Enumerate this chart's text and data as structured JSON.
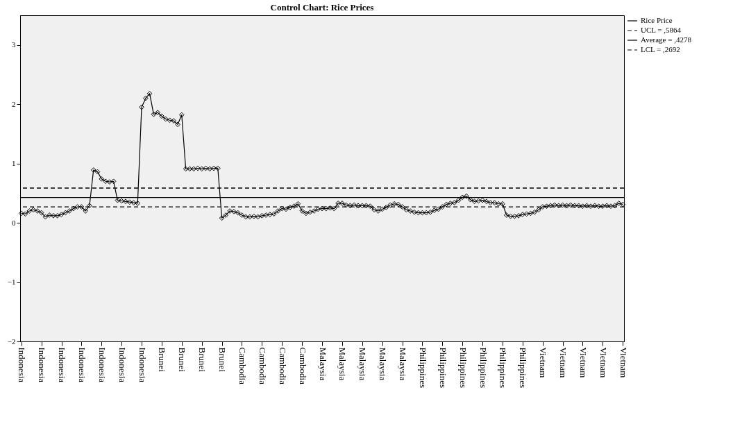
{
  "chart_data": {
    "type": "line",
    "title": "Control Chart: Rice Prices",
    "categories": [
      "Indonesia",
      null,
      null,
      null,
      null,
      "Indonesia",
      null,
      null,
      null,
      null,
      "Indonesia",
      null,
      null,
      null,
      null,
      "Indonesia",
      null,
      null,
      null,
      null,
      "Indonesia",
      null,
      null,
      null,
      null,
      "Indonesia",
      null,
      null,
      null,
      null,
      "Indonesia",
      null,
      null,
      null,
      null,
      "Brunei",
      null,
      null,
      null,
      null,
      "Brunei",
      null,
      null,
      null,
      null,
      "Brunei",
      null,
      null,
      null,
      null,
      "Brunei",
      null,
      null,
      null,
      null,
      "Cambodia",
      null,
      null,
      null,
      null,
      "Cambodia",
      null,
      null,
      null,
      null,
      "Cambodia",
      null,
      null,
      null,
      null,
      "Cambodia",
      null,
      null,
      null,
      null,
      "Malaysia",
      null,
      null,
      null,
      null,
      "Malaysia",
      null,
      null,
      null,
      null,
      "Malaysia",
      null,
      null,
      null,
      null,
      "Malaysia",
      null,
      null,
      null,
      null,
      "Malaysia",
      null,
      null,
      null,
      null,
      "Philippines",
      null,
      null,
      null,
      null,
      "Philippines",
      null,
      null,
      null,
      null,
      "Philippines",
      null,
      null,
      null,
      null,
      "Philippines",
      null,
      null,
      null,
      null,
      "Philippines",
      null,
      null,
      null,
      null,
      "Philippines",
      null,
      null,
      null,
      null,
      "Vietnam",
      null,
      null,
      null,
      null,
      "Vietnam",
      null,
      null,
      null,
      null,
      "Vietnam",
      null,
      null,
      null,
      null,
      "Vietnam",
      null,
      null,
      null,
      null,
      "Vietnam"
    ],
    "series": [
      {
        "name": "Rice Price",
        "color": "#000000",
        "values": [
          0.16,
          0.15,
          0.2,
          0.22,
          0.2,
          0.17,
          0.1,
          0.13,
          0.12,
          0.12,
          0.14,
          0.17,
          0.2,
          0.24,
          0.27,
          0.27,
          0.2,
          0.29,
          0.89,
          0.86,
          0.74,
          0.7,
          0.69,
          0.7,
          0.38,
          0.37,
          0.36,
          0.35,
          0.34,
          0.33,
          1.95,
          2.1,
          2.18,
          1.83,
          1.86,
          1.8,
          1.75,
          1.73,
          1.72,
          1.66,
          1.82,
          0.91,
          0.91,
          0.91,
          0.92,
          0.91,
          0.92,
          0.91,
          0.92,
          0.92,
          0.08,
          0.13,
          0.2,
          0.19,
          0.17,
          0.13,
          0.1,
          0.1,
          0.11,
          0.1,
          0.12,
          0.13,
          0.14,
          0.15,
          0.2,
          0.24,
          0.23,
          0.26,
          0.28,
          0.32,
          0.2,
          0.16,
          0.18,
          0.2,
          0.23,
          0.24,
          0.24,
          0.25,
          0.24,
          0.33,
          0.33,
          0.3,
          0.29,
          0.3,
          0.29,
          0.29,
          0.29,
          0.28,
          0.22,
          0.2,
          0.23,
          0.26,
          0.3,
          0.32,
          0.31,
          0.27,
          0.22,
          0.2,
          0.18,
          0.17,
          0.17,
          0.17,
          0.18,
          0.21,
          0.23,
          0.27,
          0.31,
          0.33,
          0.34,
          0.38,
          0.43,
          0.45,
          0.39,
          0.36,
          0.37,
          0.38,
          0.36,
          0.34,
          0.34,
          0.32,
          0.32,
          0.13,
          0.11,
          0.11,
          0.12,
          0.14,
          0.15,
          0.16,
          0.18,
          0.22,
          0.27,
          0.28,
          0.29,
          0.3,
          0.29,
          0.3,
          0.29,
          0.3,
          0.29,
          0.29,
          0.28,
          0.29,
          0.28,
          0.29,
          0.28,
          0.28,
          0.29,
          0.28,
          0.29,
          0.33,
          0.31
        ]
      }
    ],
    "ylim": [
      -2,
      3.5
    ],
    "yticks": [
      -2,
      -1,
      0,
      1,
      2,
      3
    ],
    "grid": false,
    "legend": "top right",
    "marker": "diamond",
    "line_style": "solid",
    "ref_lines": [
      {
        "axis": "y",
        "value": 0.5864,
        "label": "UCL = ,5864",
        "line_style": "dashed"
      },
      {
        "axis": "y",
        "value": 0.4278,
        "label": "Average = ,4278",
        "line_style": "solid"
      },
      {
        "axis": "y",
        "value": 0.2692,
        "label": "LCL = ,2692",
        "line_style": "dashed"
      }
    ]
  }
}
